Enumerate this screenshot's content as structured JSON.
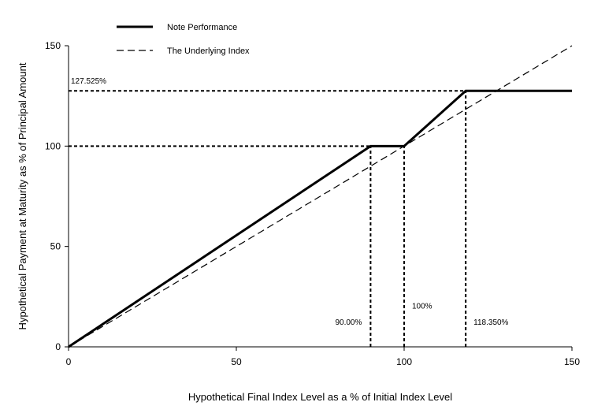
{
  "chart_data": {
    "type": "line",
    "title": "",
    "xlabel": "Hypothetical Final Index Level as a % of Initial Index Level",
    "ylabel": "Hypothetical Payment at Maturity as % of Principal Amount",
    "xlim": [
      0,
      150
    ],
    "ylim": [
      0,
      150
    ],
    "xticks": [
      "0",
      "50",
      "100",
      "150"
    ],
    "yticks": [
      "0",
      "50",
      "100",
      "150"
    ],
    "grid": false,
    "legend_position": "top-left",
    "series": [
      {
        "name": "Note Performance",
        "style": "solid-thick",
        "color": "#000000",
        "x": [
          0,
          90,
          100,
          118.35,
          150
        ],
        "y": [
          0,
          100,
          100,
          127.525,
          127.525
        ]
      },
      {
        "name": "The Underlying Index",
        "style": "dashed",
        "color": "#000000",
        "x": [
          0,
          150
        ],
        "y": [
          0,
          150
        ]
      }
    ],
    "reference_lines": [
      {
        "orientation": "horizontal",
        "y": 127.525,
        "x_from": 0,
        "x_to": 118.35
      },
      {
        "orientation": "horizontal",
        "y": 100,
        "x_from": 0,
        "x_to": 100
      },
      {
        "orientation": "vertical",
        "x": 90,
        "y_from": 0,
        "y_to": 100
      },
      {
        "orientation": "vertical",
        "x": 100,
        "y_from": 0,
        "y_to": 100
      },
      {
        "orientation": "vertical",
        "x": 118.35,
        "y_from": 0,
        "y_to": 127.525
      }
    ],
    "annotations": [
      {
        "text": "127.525%",
        "x": 0,
        "y": 127.525,
        "anchor": "above-start"
      },
      {
        "text": "90.00%",
        "x": 90,
        "y": 11,
        "anchor": "left-of"
      },
      {
        "text": "100%",
        "x": 100,
        "y": 19,
        "anchor": "right-of"
      },
      {
        "text": "118.350%",
        "x": 118.35,
        "y": 11,
        "anchor": "right-of"
      }
    ]
  }
}
